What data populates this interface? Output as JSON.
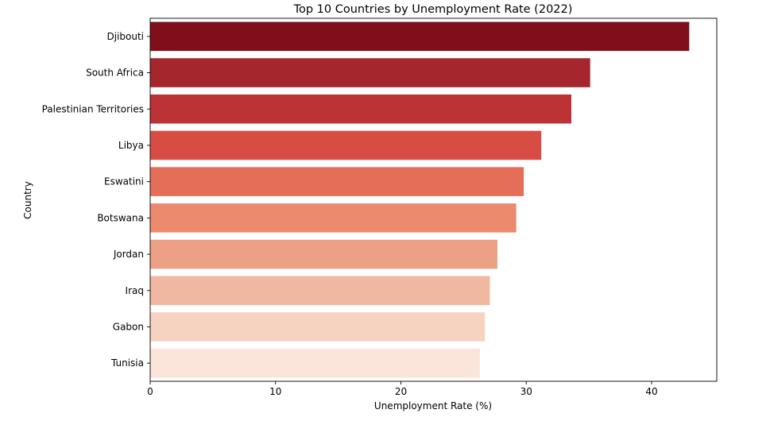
{
  "chart_data": {
    "type": "bar",
    "orientation": "horizontal",
    "title": "Top 10 Countries by Unemployment Rate (2022)",
    "xlabel": "Unemployment Rate (%)",
    "ylabel": "Country",
    "xlim": [
      0,
      45.2
    ],
    "xticks": [
      0,
      10,
      20,
      30,
      40
    ],
    "grid": false,
    "categories": [
      "Djibouti",
      "South Africa",
      "Palestinian Territories",
      "Libya",
      "Eswatini",
      "Botswana",
      "Jordan",
      "Iraq",
      "Gabon",
      "Tunisia"
    ],
    "values": [
      43.0,
      35.1,
      33.6,
      31.2,
      29.8,
      29.2,
      27.7,
      27.1,
      26.7,
      26.3
    ],
    "colors": [
      "#800e1b",
      "#a5262c",
      "#bc3235",
      "#d74c43",
      "#e46e58",
      "#eb8a6d",
      "#eca085",
      "#f0b8a0",
      "#f6d2c1",
      "#fbe5db"
    ]
  }
}
